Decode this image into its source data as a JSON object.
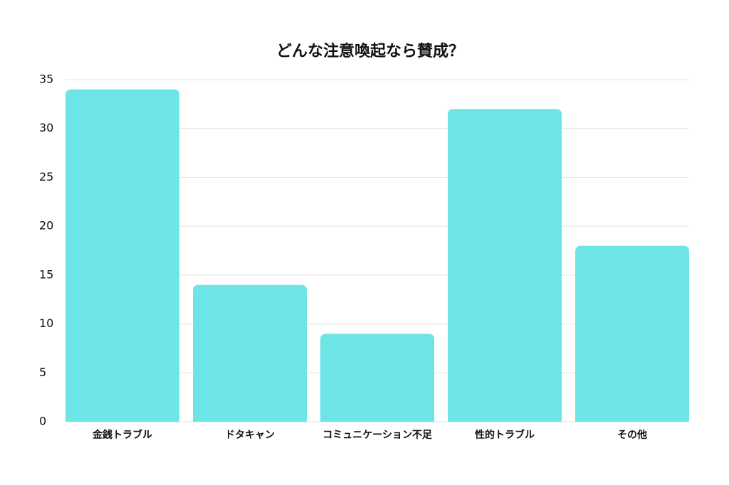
{
  "chart_data": {
    "type": "bar",
    "title": "どんな注意喚起なら賛成？",
    "categories": [
      "金銭トラブル",
      "ドタキャン",
      "コミュニケーション不足",
      "性的トラブル",
      "その他"
    ],
    "values": [
      34,
      14,
      9,
      32,
      18
    ],
    "color": "#6de5e7",
    "ylim": [
      0,
      35
    ],
    "yticks": [
      0,
      5,
      10,
      15,
      20,
      25,
      30,
      35
    ],
    "grid": true
  }
}
